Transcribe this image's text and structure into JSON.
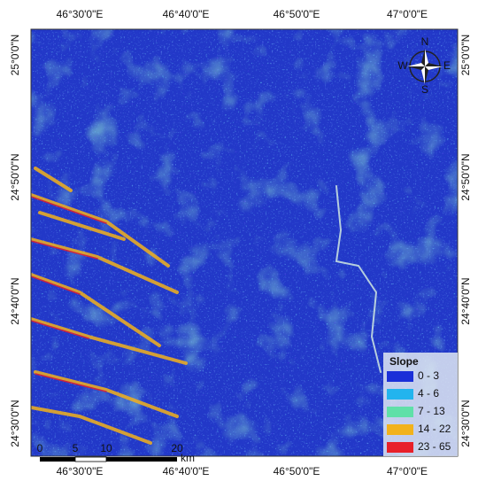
{
  "map": {
    "longitude_labels": [
      "46°30'0\"E",
      "46°40'0\"E",
      "46°50'0\"E",
      "47°0'0\"E"
    ],
    "latitude_labels": [
      "25°0'0\"N",
      "24°50'0\"N",
      "24°40'0\"N",
      "24°30'0\"N"
    ],
    "legend": {
      "title": "Slope",
      "classes": [
        {
          "label": "0 - 3",
          "color": "#1a2fd8"
        },
        {
          "label": "4 - 6",
          "color": "#22b4ee"
        },
        {
          "label": "7 - 13",
          "color": "#5fe0a8"
        },
        {
          "label": "14 - 22",
          "color": "#f2b21c"
        },
        {
          "label": "23 - 65",
          "color": "#e8202a"
        }
      ]
    },
    "scale_bar": {
      "labels": [
        "0",
        "5",
        "10",
        "20"
      ],
      "unit": "km"
    },
    "north_arrow": {
      "labels": [
        "N",
        "E",
        "S",
        "W"
      ]
    }
  }
}
